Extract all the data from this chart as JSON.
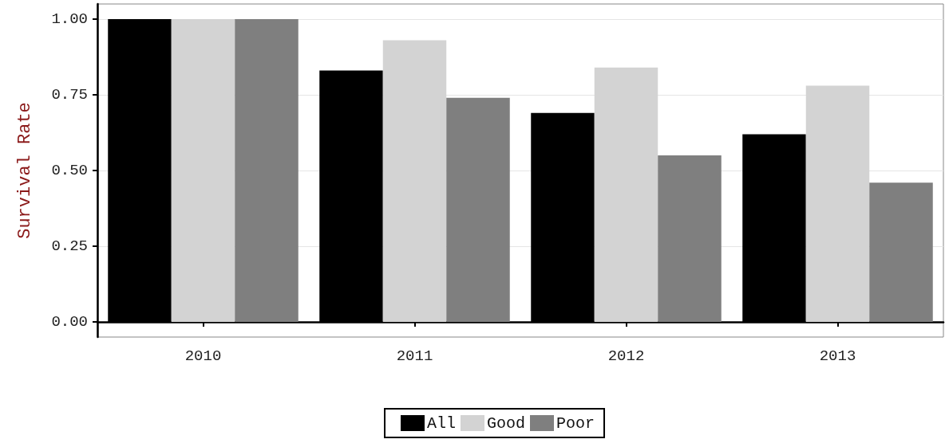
{
  "chart_data": {
    "type": "bar",
    "ylabel": "Survival Rate",
    "categories": [
      "2010",
      "2011",
      "2012",
      "2013"
    ],
    "series": [
      {
        "name": "All",
        "color": "#000000",
        "values": [
          1.0,
          0.83,
          0.69,
          0.62
        ]
      },
      {
        "name": "Good",
        "color": "#d3d3d3",
        "values": [
          1.0,
          0.93,
          0.84,
          0.78
        ]
      },
      {
        "name": "Poor",
        "color": "#7f7f7f",
        "values": [
          1.0,
          0.74,
          0.55,
          0.46
        ]
      }
    ],
    "ylim": [
      -0.05,
      1.05
    ],
    "yticks": [
      {
        "value": 0,
        "label": "0.00"
      },
      {
        "value": 0.25,
        "label": "0.25"
      },
      {
        "value": 0.5,
        "label": "0.50"
      },
      {
        "value": 0.75,
        "label": "0.75"
      },
      {
        "value": 1,
        "label": "1.00"
      }
    ],
    "grid": "y",
    "legend": "bottom"
  }
}
